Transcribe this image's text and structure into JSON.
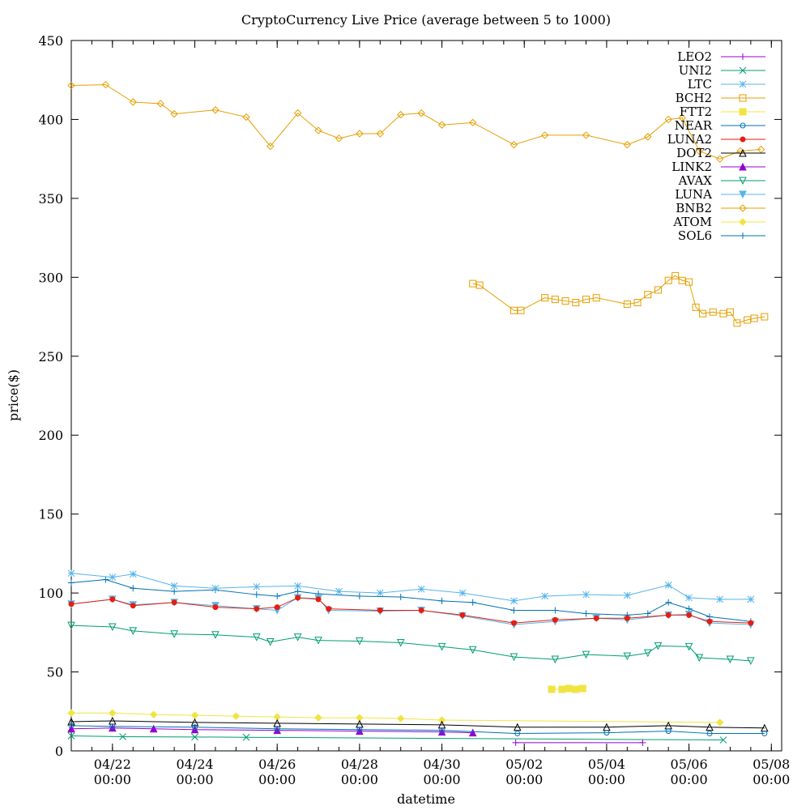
{
  "chart_data": {
    "type": "line",
    "title": "CryptoCurrency Live Price (average between 5 to 1000)",
    "xlabel": "datetime",
    "ylabel": "price($)",
    "ylim": [
      0,
      450
    ],
    "yticks": [
      0,
      50,
      100,
      150,
      200,
      250,
      300,
      350,
      400,
      450
    ],
    "xlim": [
      "2022-04-21 00:00",
      "2022-05-08 06:00"
    ],
    "xticks": [
      {
        "x": "2022-04-22 00:00",
        "line1": "04/22",
        "line2": "00:00"
      },
      {
        "x": "2022-04-24 00:00",
        "line1": "04/24",
        "line2": "00:00"
      },
      {
        "x": "2022-04-26 00:00",
        "line1": "04/26",
        "line2": "00:00"
      },
      {
        "x": "2022-04-28 00:00",
        "line1": "04/28",
        "line2": "00:00"
      },
      {
        "x": "2022-04-30 00:00",
        "line1": "04/30",
        "line2": "00:00"
      },
      {
        "x": "2022-05-02 00:00",
        "line1": "05/02",
        "line2": "00:00"
      },
      {
        "x": "2022-05-04 00:00",
        "line1": "05/04",
        "line2": "00:00"
      },
      {
        "x": "2022-05-06 00:00",
        "line1": "05/06",
        "line2": "00:00"
      },
      {
        "x": "2022-05-08 00:00",
        "line1": "05/08",
        "line2": "00:00"
      }
    ],
    "grid": false,
    "legend_position": "top-right",
    "series": [
      {
        "name": "LEO2",
        "color": "#9400d3",
        "marker": "plus",
        "points": [
          [
            "2022-05-01 19:00",
            5.2
          ],
          [
            "2022-05-04 21:00",
            5.2
          ]
        ]
      },
      {
        "name": "UNI2",
        "color": "#009e73",
        "marker": "cross",
        "points": [
          [
            "2022-04-21 00:00",
            9.5
          ],
          [
            "2022-04-22 06:00",
            9.0
          ],
          [
            "2022-04-24 00:00",
            8.8
          ],
          [
            "2022-04-25 06:00",
            8.6
          ],
          [
            "2022-05-06 20:00",
            6.9
          ]
        ]
      },
      {
        "name": "LTC",
        "color": "#56b4e9",
        "marker": "star",
        "points": [
          [
            "2022-04-21 00:00",
            112.5
          ],
          [
            "2022-04-22 00:00",
            110.0
          ],
          [
            "2022-04-22 12:00",
            112.0
          ],
          [
            "2022-04-23 12:00",
            104.5
          ],
          [
            "2022-04-24 12:00",
            103.0
          ],
          [
            "2022-04-25 12:00",
            104.0
          ],
          [
            "2022-04-26 12:00",
            104.5
          ],
          [
            "2022-04-27 12:00",
            101.0
          ],
          [
            "2022-04-28 12:00",
            100.0
          ],
          [
            "2022-04-29 12:00",
            102.5
          ],
          [
            "2022-04-30 12:00",
            100.0
          ],
          [
            "2022-05-01 18:00",
            95.0
          ],
          [
            "2022-05-02 12:00",
            98.0
          ],
          [
            "2022-05-03 12:00",
            99.0
          ],
          [
            "2022-05-04 12:00",
            98.5
          ],
          [
            "2022-05-05 12:00",
            105.0
          ],
          [
            "2022-05-06 00:00",
            97.0
          ],
          [
            "2022-05-06 18:00",
            96.0
          ],
          [
            "2022-05-07 12:00",
            96.0
          ]
        ]
      },
      {
        "name": "BCH2",
        "color": "#e69f00",
        "marker": "square",
        "points": [
          [
            "2022-04-30 18:00",
            296.0
          ],
          [
            "2022-04-30 22:00",
            295.0
          ],
          [
            "2022-05-01 18:00",
            279.0
          ],
          [
            "2022-05-01 22:00",
            279.0
          ],
          [
            "2022-05-02 12:00",
            287.0
          ],
          [
            "2022-05-02 18:00",
            286.0
          ],
          [
            "2022-05-03 00:00",
            285.0
          ],
          [
            "2022-05-03 06:00",
            284.0
          ],
          [
            "2022-05-03 12:00",
            286.0
          ],
          [
            "2022-05-03 18:00",
            287.0
          ],
          [
            "2022-05-04 12:00",
            283.0
          ],
          [
            "2022-05-04 18:00",
            284.0
          ],
          [
            "2022-05-05 00:00",
            289.0
          ],
          [
            "2022-05-05 06:00",
            292.0
          ],
          [
            "2022-05-05 12:00",
            298.0
          ],
          [
            "2022-05-05 16:00",
            301.0
          ],
          [
            "2022-05-05 20:00",
            298.0
          ],
          [
            "2022-05-06 00:00",
            297.0
          ],
          [
            "2022-05-06 04:00",
            281.0
          ],
          [
            "2022-05-06 08:00",
            277.0
          ],
          [
            "2022-05-06 14:00",
            278.0
          ],
          [
            "2022-05-06 20:00",
            277.0
          ],
          [
            "2022-05-07 00:00",
            278.0
          ],
          [
            "2022-05-07 04:00",
            271.0
          ],
          [
            "2022-05-07 10:00",
            273.0
          ],
          [
            "2022-05-07 14:00",
            274.0
          ],
          [
            "2022-05-07 20:00",
            275.0
          ]
        ]
      },
      {
        "name": "FTT2",
        "color": "#f0e442",
        "marker": "filled-square",
        "points": [
          [
            "2022-05-02 16:00",
            39.0
          ],
          [
            "2022-05-02 22:00",
            39.0
          ],
          [
            "2022-05-03 02:00",
            39.5
          ],
          [
            "2022-05-03 06:00",
            39.0
          ],
          [
            "2022-05-03 10:00",
            39.5
          ]
        ]
      },
      {
        "name": "NEAR",
        "color": "#0072b2",
        "marker": "circle",
        "points": [
          [
            "2022-04-21 00:00",
            16.0
          ],
          [
            "2022-04-22 00:00",
            15.5
          ],
          [
            "2022-04-24 00:00",
            15.0
          ],
          [
            "2022-04-26 00:00",
            14.0
          ],
          [
            "2022-04-28 00:00",
            13.5
          ],
          [
            "2022-04-30 00:00",
            13.0
          ],
          [
            "2022-05-01 20:00",
            11.0
          ],
          [
            "2022-05-04 00:00",
            11.5
          ],
          [
            "2022-05-05 12:00",
            12.5
          ],
          [
            "2022-05-06 12:00",
            11.0
          ],
          [
            "2022-05-07 20:00",
            11.0
          ]
        ]
      },
      {
        "name": "LUNA2",
        "color": "#e51e10",
        "marker": "filled-circle",
        "points": [
          [
            "2022-04-21 00:00",
            93.0
          ],
          [
            "2022-04-22 00:00",
            96.0
          ],
          [
            "2022-04-22 12:00",
            92.0
          ],
          [
            "2022-04-23 12:00",
            94.0
          ],
          [
            "2022-04-24 12:00",
            91.0
          ],
          [
            "2022-04-25 12:00",
            90.0
          ],
          [
            "2022-04-26 00:00",
            91.0
          ],
          [
            "2022-04-26 12:00",
            97.0
          ],
          [
            "2022-04-27 00:00",
            96.0
          ],
          [
            "2022-04-27 06:00",
            90.0
          ],
          [
            "2022-04-28 12:00",
            89.0
          ],
          [
            "2022-04-29 12:00",
            89.0
          ],
          [
            "2022-04-30 12:00",
            86.0
          ],
          [
            "2022-05-01 18:00",
            81.0
          ],
          [
            "2022-05-02 18:00",
            83.0
          ],
          [
            "2022-05-03 18:00",
            84.0
          ],
          [
            "2022-05-04 12:00",
            84.0
          ],
          [
            "2022-05-05 12:00",
            86.0
          ],
          [
            "2022-05-06 00:00",
            86.0
          ],
          [
            "2022-05-06 12:00",
            82.0
          ],
          [
            "2022-05-07 12:00",
            81.0
          ]
        ]
      },
      {
        "name": "DOT2",
        "color": "#000000",
        "marker": "triangle",
        "points": [
          [
            "2022-04-21 00:00",
            18.5
          ],
          [
            "2022-04-22 00:00",
            19.0
          ],
          [
            "2022-04-24 00:00",
            18.0
          ],
          [
            "2022-04-26 00:00",
            17.5
          ],
          [
            "2022-04-28 00:00",
            17.0
          ],
          [
            "2022-04-30 00:00",
            16.5
          ],
          [
            "2022-05-01 20:00",
            15.0
          ],
          [
            "2022-05-04 00:00",
            15.0
          ],
          [
            "2022-05-05 12:00",
            16.0
          ],
          [
            "2022-05-06 12:00",
            15.0
          ],
          [
            "2022-05-07 20:00",
            14.5
          ]
        ]
      },
      {
        "name": "LINK2",
        "color": "#9400d3",
        "marker": "filled-triangle",
        "points": [
          [
            "2022-04-21 00:00",
            14.0
          ],
          [
            "2022-04-22 00:00",
            14.5
          ],
          [
            "2022-04-23 00:00",
            14.0
          ],
          [
            "2022-04-24 00:00",
            13.5
          ],
          [
            "2022-04-26 00:00",
            13.0
          ],
          [
            "2022-04-28 00:00",
            12.5
          ],
          [
            "2022-04-30 00:00",
            12.0
          ],
          [
            "2022-04-30 18:00",
            11.5
          ]
        ]
      },
      {
        "name": "AVAX",
        "color": "#009e73",
        "marker": "inverted-triangle",
        "points": [
          [
            "2022-04-21 00:00",
            79.5
          ],
          [
            "2022-04-22 00:00",
            78.5
          ],
          [
            "2022-04-22 12:00",
            76.0
          ],
          [
            "2022-04-23 12:00",
            74.0
          ],
          [
            "2022-04-24 12:00",
            73.5
          ],
          [
            "2022-04-25 12:00",
            72.0
          ],
          [
            "2022-04-25 20:00",
            69.0
          ],
          [
            "2022-04-26 12:00",
            72.0
          ],
          [
            "2022-04-27 00:00",
            70.0
          ],
          [
            "2022-04-28 00:00",
            69.5
          ],
          [
            "2022-04-29 00:00",
            68.5
          ],
          [
            "2022-04-30 00:00",
            66.0
          ],
          [
            "2022-04-30 18:00",
            64.0
          ],
          [
            "2022-05-01 18:00",
            59.5
          ],
          [
            "2022-05-02 18:00",
            58.0
          ],
          [
            "2022-05-03 12:00",
            61.0
          ],
          [
            "2022-05-04 12:00",
            60.0
          ],
          [
            "2022-05-05 00:00",
            62.0
          ],
          [
            "2022-05-05 06:00",
            66.5
          ],
          [
            "2022-05-06 00:00",
            66.0
          ],
          [
            "2022-05-06 06:00",
            59.0
          ],
          [
            "2022-05-07 00:00",
            58.0
          ],
          [
            "2022-05-07 12:00",
            57.0
          ]
        ]
      },
      {
        "name": "LUNA",
        "color": "#56b4e9",
        "marker": "filled-inverted-triangle",
        "points": [
          [
            "2022-04-21 00:00",
            93.0
          ],
          [
            "2022-04-22 00:00",
            96.0
          ],
          [
            "2022-04-22 12:00",
            92.5
          ],
          [
            "2022-04-23 12:00",
            94.0
          ],
          [
            "2022-04-24 12:00",
            92.0
          ],
          [
            "2022-04-25 12:00",
            90.0
          ],
          [
            "2022-04-26 00:00",
            89.0
          ],
          [
            "2022-04-26 12:00",
            97.0
          ],
          [
            "2022-04-27 00:00",
            96.5
          ],
          [
            "2022-04-27 06:00",
            89.0
          ],
          [
            "2022-04-28 12:00",
            88.5
          ],
          [
            "2022-04-29 12:00",
            89.0
          ],
          [
            "2022-04-30 12:00",
            85.5
          ],
          [
            "2022-05-01 18:00",
            80.0
          ],
          [
            "2022-05-02 18:00",
            82.0
          ],
          [
            "2022-05-03 18:00",
            84.0
          ],
          [
            "2022-05-04 12:00",
            83.0
          ],
          [
            "2022-05-05 12:00",
            86.0
          ],
          [
            "2022-05-06 00:00",
            86.5
          ],
          [
            "2022-05-06 12:00",
            81.0
          ],
          [
            "2022-05-07 12:00",
            80.0
          ]
        ]
      },
      {
        "name": "BNB2",
        "color": "#e69f00",
        "marker": "diamond",
        "points": [
          [
            "2022-04-21 00:00",
            421.5
          ],
          [
            "2022-04-21 20:00",
            422.0
          ],
          [
            "2022-04-22 12:00",
            411.0
          ],
          [
            "2022-04-23 04:00",
            410.0
          ],
          [
            "2022-04-23 12:00",
            403.5
          ],
          [
            "2022-04-24 12:00",
            406.0
          ],
          [
            "2022-04-25 06:00",
            401.5
          ],
          [
            "2022-04-25 20:00",
            383.0
          ],
          [
            "2022-04-26 12:00",
            404.0
          ],
          [
            "2022-04-27 00:00",
            393.0
          ],
          [
            "2022-04-27 12:00",
            388.0
          ],
          [
            "2022-04-28 00:00",
            391.0
          ],
          [
            "2022-04-28 12:00",
            391.0
          ],
          [
            "2022-04-29 00:00",
            403.0
          ],
          [
            "2022-04-29 12:00",
            404.0
          ],
          [
            "2022-04-30 00:00",
            396.5
          ],
          [
            "2022-04-30 18:00",
            398.0
          ],
          [
            "2022-05-01 18:00",
            384.0
          ],
          [
            "2022-05-02 12:00",
            390.0
          ],
          [
            "2022-05-03 12:00",
            390.0
          ],
          [
            "2022-05-04 12:00",
            384.0
          ],
          [
            "2022-05-05 00:00",
            389.0
          ],
          [
            "2022-05-05 12:00",
            400.0
          ],
          [
            "2022-05-05 20:00",
            401.0
          ],
          [
            "2022-05-06 06:00",
            380.0
          ],
          [
            "2022-05-06 18:00",
            375.0
          ],
          [
            "2022-05-07 06:00",
            380.0
          ],
          [
            "2022-05-07 18:00",
            381.0
          ]
        ]
      },
      {
        "name": "ATOM",
        "color": "#f0e442",
        "marker": "filled-diamond",
        "points": [
          [
            "2022-04-21 00:00",
            24.0
          ],
          [
            "2022-04-22 00:00",
            24.0
          ],
          [
            "2022-04-23 00:00",
            23.0
          ],
          [
            "2022-04-24 00:00",
            22.5
          ],
          [
            "2022-04-25 00:00",
            22.0
          ],
          [
            "2022-04-26 00:00",
            21.5
          ],
          [
            "2022-04-27 00:00",
            21.0
          ],
          [
            "2022-04-28 00:00",
            21.0
          ],
          [
            "2022-04-29 00:00",
            20.5
          ],
          [
            "2022-04-30 00:00",
            19.5
          ],
          [
            "2022-05-06 18:00",
            18.0
          ]
        ]
      },
      {
        "name": "SOL6",
        "color": "#0072b2",
        "marker": "plus",
        "points": [
          [
            "2022-04-21 00:00",
            106.5
          ],
          [
            "2022-04-21 20:00",
            108.5
          ],
          [
            "2022-04-22 12:00",
            103.0
          ],
          [
            "2022-04-23 12:00",
            101.0
          ],
          [
            "2022-04-24 12:00",
            102.0
          ],
          [
            "2022-04-25 12:00",
            99.0
          ],
          [
            "2022-04-26 00:00",
            98.0
          ],
          [
            "2022-04-26 12:00",
            101.0
          ],
          [
            "2022-04-27 00:00",
            99.5
          ],
          [
            "2022-04-28 00:00",
            98.0
          ],
          [
            "2022-04-29 00:00",
            97.5
          ],
          [
            "2022-04-30 00:00",
            95.0
          ],
          [
            "2022-04-30 18:00",
            94.0
          ],
          [
            "2022-05-01 18:00",
            89.0
          ],
          [
            "2022-05-02 18:00",
            89.0
          ],
          [
            "2022-05-03 12:00",
            87.0
          ],
          [
            "2022-05-04 12:00",
            86.0
          ],
          [
            "2022-05-05 00:00",
            87.0
          ],
          [
            "2022-05-05 12:00",
            94.0
          ],
          [
            "2022-05-06 00:00",
            90.0
          ],
          [
            "2022-05-06 12:00",
            85.0
          ],
          [
            "2022-05-07 12:00",
            82.0
          ]
        ]
      }
    ]
  }
}
